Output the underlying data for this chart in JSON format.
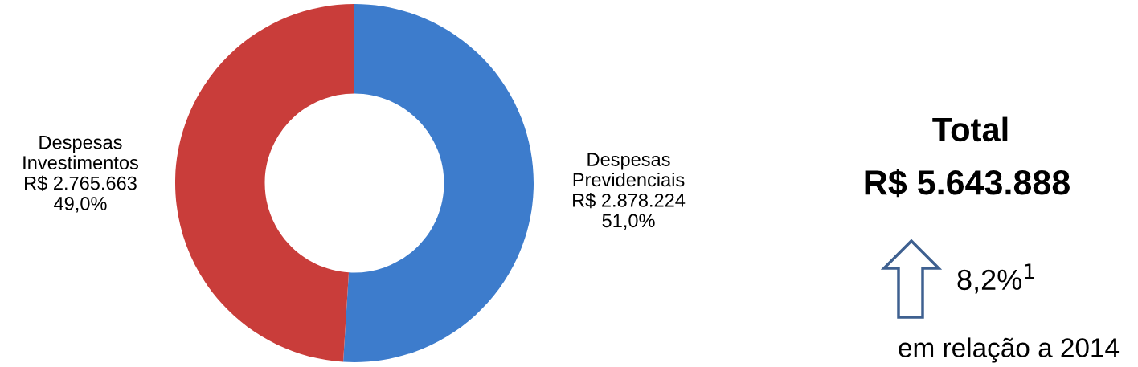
{
  "chart_data": {
    "type": "donut",
    "categories": [
      "Despesas\nPrevidenciais",
      "Despesas\nInvestimentos"
    ],
    "values": [
      2878224,
      2765663
    ],
    "value_labels": [
      "R$ 2.878.224\n51,0%",
      "R$ 2.765.663\n49,0%"
    ],
    "colors": [
      "#3d7ccc",
      "#c93d3a"
    ],
    "annotations": [
      "Total",
      "R$ 5.643.888",
      "8,2%$^{1}$",
      "em relação a 2014"
    ]
  }
}
